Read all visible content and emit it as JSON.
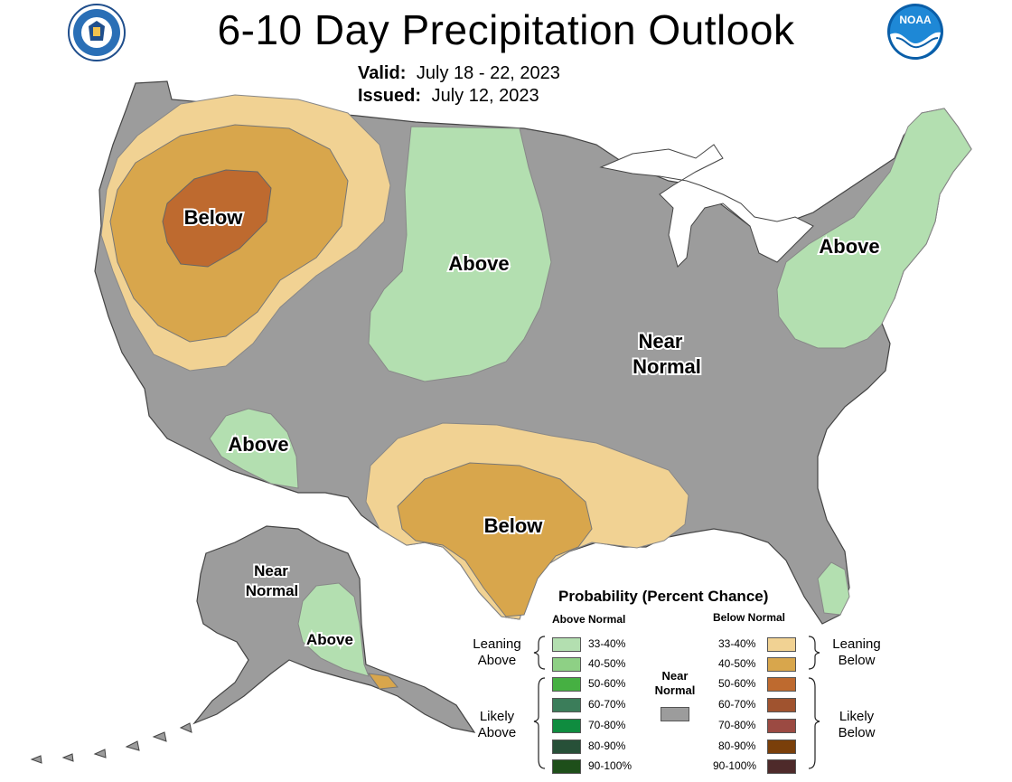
{
  "title": "6-10 Day Precipitation Outlook",
  "valid": {
    "label": "Valid:",
    "value": "July 18 - 22, 2023"
  },
  "issued": {
    "label": "Issued:",
    "value": "July 12, 2023"
  },
  "logos": {
    "left": "department-of-commerce-seal",
    "right": "noaa-logo",
    "noaa_text": "NOAA"
  },
  "colors": {
    "near_normal": "#9c9c9c",
    "above_33_40": "#b3dfb0",
    "above_40_50": "#8ed085",
    "above_50_60": "#46b042",
    "above_60_70": "#3b7d5a",
    "above_70_80": "#0f8c3f",
    "above_80_90": "#275038",
    "above_90_100": "#1e4f1a",
    "below_33_40": "#f1d293",
    "below_40_50": "#d8a64c",
    "below_50_60": "#be6a2f",
    "below_60_70": "#a0532f",
    "below_70_80": "#9b4a42",
    "below_80_90": "#7a3f0a",
    "below_90_100": "#4e2a2a"
  },
  "map_labels": {
    "nw_below": "Below",
    "plains_above": "Above",
    "ne_above": "Above",
    "center_near": "Near",
    "center_normal": "Normal",
    "sw_above": "Above",
    "tx_below": "Below",
    "ak_near": "Near",
    "ak_normal": "Normal",
    "ak_above": "Above"
  },
  "legend": {
    "title": "Probability (Percent Chance)",
    "above_header": "Above Normal",
    "below_header": "Below Normal",
    "above_ranges": [
      "33-40%",
      "40-50%",
      "50-60%",
      "60-70%",
      "70-80%",
      "80-90%",
      "90-100%"
    ],
    "below_ranges": [
      "33-40%",
      "40-50%",
      "50-60%",
      "60-70%",
      "70-80%",
      "80-90%",
      "90-100%"
    ],
    "leaning_above": [
      "Leaning",
      "Above"
    ],
    "likely_above": [
      "Likely",
      "Above"
    ],
    "leaning_below": [
      "Leaning",
      "Below"
    ],
    "likely_below": [
      "Likely",
      "Below"
    ],
    "near_normal": [
      "Near",
      "Normal"
    ]
  }
}
